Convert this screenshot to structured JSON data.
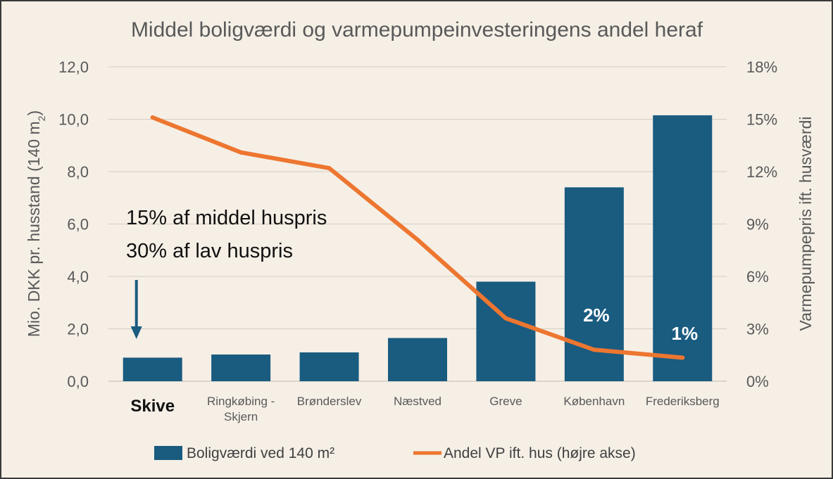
{
  "chart_data": {
    "type": "bar",
    "title": "Middel boligværdi og varmepumpeinvesteringens andel heraf",
    "categories": [
      [
        "Skive"
      ],
      [
        "Ringkøbing -",
        "Skjern"
      ],
      [
        "Brønderslev"
      ],
      [
        "Næstved"
      ],
      [
        "Greve"
      ],
      [
        "København"
      ],
      [
        "Frederiksberg"
      ]
    ],
    "highlight_category_index": 0,
    "series": [
      {
        "name": "Boligværdi ved 140 m²",
        "kind": "bar",
        "axis": "left",
        "color": "#1a5b80",
        "values": [
          0.9,
          1.02,
          1.1,
          1.65,
          3.8,
          7.4,
          10.15
        ]
      },
      {
        "name": "Andel VP ift. hus (højre akse)",
        "kind": "line",
        "axis": "right",
        "color": "#ed7630",
        "values": [
          15.1,
          13.1,
          12.2,
          8.1,
          3.6,
          1.8,
          1.35
        ]
      }
    ],
    "left_axis": {
      "label": "Mio. DKK pr. husstand (140 m",
      "label_subscript": "2",
      "label_suffix": ")",
      "min": 0,
      "max": 12,
      "step": 2,
      "tick_labels": [
        "0,0",
        "2,0",
        "4,0",
        "6,0",
        "8,0",
        "10,0",
        "12,0"
      ]
    },
    "right_axis": {
      "label": "Varmepumpepris ift. husværdi",
      "min": 0,
      "max": 18,
      "step": 3,
      "tick_labels": [
        "0%",
        "3%",
        "6%",
        "9%",
        "12%",
        "15%",
        "18%"
      ]
    },
    "gridlines": true,
    "legend_position": "bottom",
    "annotations": [
      {
        "text": "15% af middel huspris"
      },
      {
        "text": "30% af lav huspris"
      }
    ],
    "data_labels": [
      {
        "text": "2%",
        "category_index": 5
      },
      {
        "text": "1%",
        "category_index": 6
      }
    ],
    "arrow_target_category_index": 0
  },
  "colors": {
    "background": "#f5efe6",
    "bar": "#1a5b80",
    "line": "#ed7630",
    "grid": "#d3cdc4",
    "text": "#595959"
  }
}
